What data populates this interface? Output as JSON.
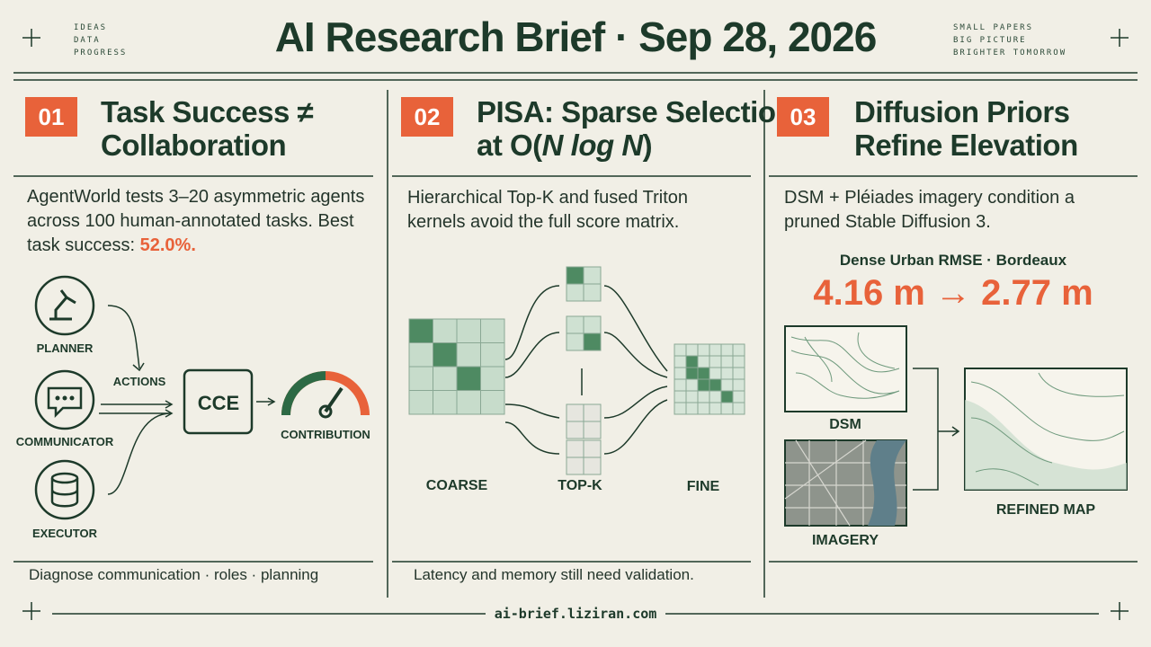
{
  "header": {
    "left_tags": [
      "IDEAS",
      "DATA",
      "PROGRESS"
    ],
    "title": "AI Research Brief · Sep 28, 2026",
    "right_tags": [
      "SMALL PAPERS",
      "BIG PICTURE",
      "BRIGHTER TOMORROW"
    ]
  },
  "panels": [
    {
      "number": "01",
      "title_lines": [
        "Task Success ≠",
        "Collaboration"
      ],
      "body": "AgentWorld tests 3–20 asymmetric agents across 100 human-annotated tasks. Best task success: ",
      "body_highlight": "52.0%.",
      "diagram": {
        "roles": [
          "PLANNER",
          "COMMUNICATOR",
          "EXECUTOR"
        ],
        "edge_label": "ACTIONS",
        "hub": "CCE",
        "output": "CONTRIBUTION"
      },
      "note": "Diagnose communication · roles · planning"
    },
    {
      "number": "02",
      "title_line1": "PISA: Sparse Selection",
      "title_line2": {
        "prefix": "at O(",
        "math": "N log N",
        "suffix": ")"
      },
      "body": "Hierarchical Top-K and fused Triton kernels avoid the full score matrix.",
      "diagram": {
        "stages": [
          "COARSE",
          "TOP-K",
          "FINE"
        ]
      },
      "note": "Latency and memory still need validation."
    },
    {
      "number": "03",
      "title_lines": [
        "Diffusion Priors",
        "Refine Elevation"
      ],
      "body": "DSM + Pléiades imagery condition a pruned Stable Diffusion 3.",
      "metric_label": "Dense Urban RMSE · Bordeaux",
      "metric": "4.16 m → 2.77 m",
      "diagram": {
        "inputs": [
          "DSM",
          "IMAGERY"
        ],
        "output": "REFINED MAP"
      }
    }
  ],
  "footer": {
    "url": "ai-brief.liziran.com"
  }
}
